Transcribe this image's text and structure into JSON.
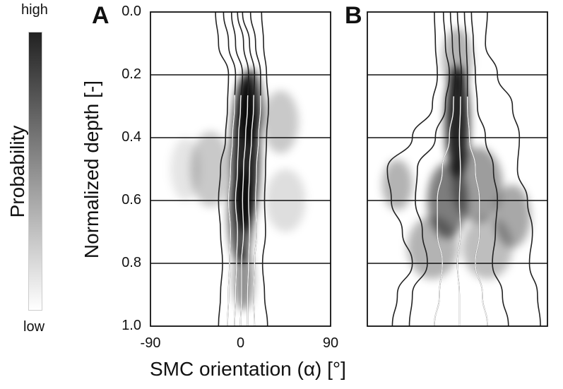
{
  "colorbar": {
    "label": "Probability",
    "high": "high",
    "low": "low"
  },
  "chart_data": {
    "type": "heatmap",
    "ylabel": "Normalized depth [-]",
    "xlabel": "SMC orientation (α) [°]",
    "yticks": [
      "0.0",
      "0.2",
      "0.4",
      "0.6",
      "0.8",
      "1.0"
    ],
    "xticks": [
      "-90",
      "0",
      "90"
    ],
    "xlim": [
      -90,
      90
    ],
    "ylim": [
      0,
      1
    ],
    "depth_samples": [
      0,
      0.1,
      0.2,
      0.3,
      0.4,
      0.5,
      0.6,
      0.7,
      0.8,
      0.9,
      1.0
    ],
    "panels": [
      {
        "label": "A",
        "density_blobs": [
          [
            5,
            0.45,
            14,
            0.25,
            1.0
          ],
          [
            10,
            0.3,
            12,
            0.12,
            0.8
          ],
          [
            0,
            0.65,
            12,
            0.15,
            0.8
          ],
          [
            3,
            0.85,
            10,
            0.1,
            0.5
          ],
          [
            -30,
            0.5,
            20,
            0.12,
            0.25
          ],
          [
            40,
            0.35,
            18,
            0.1,
            0.25
          ],
          [
            -55,
            0.5,
            15,
            0.1,
            0.12
          ],
          [
            45,
            0.6,
            20,
            0.1,
            0.15
          ]
        ],
        "lines": [
          [
            -25,
            -22,
            -12,
            -13,
            -15,
            -20,
            -22,
            -20,
            -18,
            -20,
            -22
          ],
          [
            -17,
            -12,
            -5,
            -6,
            -8,
            -10,
            -12,
            -10,
            -11,
            -12,
            -13
          ],
          [
            -9,
            -5,
            2,
            0,
            -2,
            -3,
            -5,
            -3,
            -4,
            -5,
            -6
          ],
          [
            -3,
            3,
            8,
            7,
            5,
            3,
            2,
            3,
            1,
            1,
            0
          ],
          [
            2,
            9,
            14,
            13,
            11,
            9,
            8,
            9,
            8,
            7,
            7
          ],
          [
            10,
            15,
            20,
            20,
            18,
            16,
            15,
            16,
            14,
            13,
            14
          ],
          [
            21,
            23,
            26,
            28,
            26,
            25,
            24,
            25,
            22,
            24,
            27
          ]
        ]
      },
      {
        "label": "B",
        "density_blobs": [
          [
            0,
            0.35,
            12,
            0.18,
            1.0
          ],
          [
            -10,
            0.6,
            20,
            0.12,
            0.6
          ],
          [
            20,
            0.55,
            25,
            0.12,
            0.45
          ],
          [
            -60,
            0.55,
            15,
            0.08,
            0.35
          ],
          [
            55,
            0.65,
            18,
            0.1,
            0.4
          ],
          [
            -25,
            0.75,
            25,
            0.1,
            0.35
          ],
          [
            30,
            0.75,
            25,
            0.1,
            0.3
          ],
          [
            0,
            0.15,
            15,
            0.1,
            0.35
          ]
        ],
        "lines": [
          [
            -23,
            -22,
            -20,
            -25,
            -45,
            -70,
            -66,
            -55,
            -45,
            -60,
            -65
          ],
          [
            -14,
            -12,
            -8,
            -12,
            -22,
            -40,
            -42,
            -35,
            -30,
            -45,
            -48
          ],
          [
            -7,
            -5,
            -2,
            -4,
            -8,
            -15,
            -20,
            -20,
            -15,
            -18,
            -23
          ],
          [
            0,
            2,
            4,
            3,
            2,
            3,
            2,
            3,
            0,
            2,
            2
          ],
          [
            7,
            9,
            10,
            10,
            12,
            18,
            22,
            22,
            18,
            25,
            30
          ],
          [
            14,
            16,
            18,
            20,
            28,
            36,
            40,
            38,
            35,
            45,
            51
          ],
          [
            30,
            28,
            40,
            55,
            62,
            60,
            70,
            75,
            72,
            80,
            83
          ]
        ]
      }
    ]
  }
}
